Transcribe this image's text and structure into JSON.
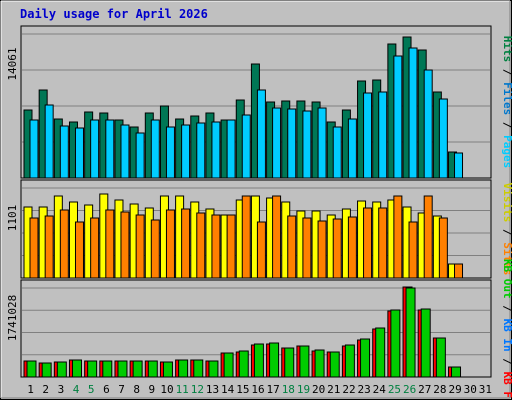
{
  "title": "Daily usage for April 2026",
  "colors": {
    "background": "#c0c0c0",
    "title": "#0000cc",
    "hits": "#007755",
    "files": "#00ccff",
    "pages": "#00ccff",
    "visits": "#ffff00",
    "sites": "#ff8000",
    "kb_f": "#ff0000",
    "kb_in": "#0077ff",
    "kb_out": "#00cc00",
    "weekend": "#008040",
    "axis_text": "#000000"
  },
  "right_labels": {
    "panel1": [
      {
        "text": "Hits",
        "color": "#008040"
      },
      {
        "text": " / ",
        "color": "#000000"
      },
      {
        "text": "Files",
        "color": "#0077cc"
      },
      {
        "text": " / ",
        "color": "#000000"
      },
      {
        "text": "Pages",
        "color": "#00ccff"
      }
    ],
    "panel2": [
      {
        "text": "Visits",
        "color": "#cccc00"
      },
      {
        "text": " / ",
        "color": "#000000"
      },
      {
        "text": "Sites",
        "color": "#ff8000"
      }
    ],
    "panel3": [
      {
        "text": "KB Out",
        "color": "#00cc00"
      },
      {
        "text": " / ",
        "color": "#000000"
      },
      {
        "text": "KB In",
        "color": "#0077ff"
      },
      {
        "text": " / ",
        "color": "#000000"
      },
      {
        "text": "KB F",
        "color": "#ff0000"
      }
    ]
  },
  "chart_data": [
    {
      "type": "bar",
      "name": "hits-files-pages",
      "max_label": "14061",
      "ylim": [
        0,
        14061
      ],
      "categories": [
        "1",
        "2",
        "3",
        "4",
        "5",
        "6",
        "7",
        "8",
        "9",
        "10",
        "11",
        "12",
        "13",
        "14",
        "15",
        "16",
        "17",
        "18",
        "19",
        "20",
        "21",
        "22",
        "23",
        "24",
        "25",
        "26",
        "27",
        "28",
        "29",
        "30",
        "31"
      ],
      "series": [
        {
          "name": "Hits",
          "values": [
            6600,
            8600,
            5800,
            5500,
            6400,
            6300,
            5700,
            5000,
            6300,
            7000,
            5800,
            6100,
            6300,
            5700,
            7600,
            11100,
            7400,
            7500,
            7500,
            7400,
            5500,
            6600,
            9500,
            9600,
            13100,
            13800,
            12500,
            8400,
            2500,
            0,
            0
          ]
        },
        {
          "name": "Files",
          "values": [
            5700,
            7100,
            5100,
            4900,
            5700,
            5700,
            5200,
            4400,
            5700,
            5000,
            5200,
            5400,
            5500,
            5700,
            6200,
            8600,
            6800,
            6700,
            6500,
            6800,
            5000,
            5800,
            8300,
            8400,
            11900,
            12700,
            10500,
            7700,
            2400,
            0,
            0
          ]
        },
        {
          "name": "Pages",
          "values": [
            0,
            0,
            0,
            0,
            0,
            0,
            0,
            0,
            0,
            0,
            0,
            0,
            0,
            0,
            0,
            0,
            0,
            0,
            0,
            0,
            0,
            0,
            0,
            0,
            0,
            0,
            0,
            0,
            0,
            0,
            0
          ]
        }
      ]
    },
    {
      "type": "bar",
      "name": "visits-sites",
      "max_label": "1101",
      "ylim": [
        0,
        1101
      ],
      "categories": [
        "1",
        "2",
        "3",
        "4",
        "5",
        "6",
        "7",
        "8",
        "9",
        "10",
        "11",
        "12",
        "13",
        "14",
        "15",
        "16",
        "17",
        "18",
        "19",
        "20",
        "21",
        "22",
        "23",
        "24",
        "25",
        "26",
        "27",
        "28",
        "29",
        "30",
        "31"
      ],
      "series": [
        {
          "name": "Visits",
          "values": [
            870,
            870,
            1000,
            930,
            890,
            1030,
            950,
            900,
            860,
            1000,
            1000,
            930,
            850,
            770,
            960,
            1000,
            980,
            930,
            820,
            820,
            770,
            850,
            940,
            930,
            950,
            870,
            790,
            760,
            170,
            0,
            0
          ]
        },
        {
          "name": "Sites",
          "values": [
            740,
            760,
            830,
            680,
            730,
            830,
            810,
            770,
            710,
            830,
            840,
            800,
            770,
            770,
            1000,
            680,
            1000,
            760,
            740,
            700,
            720,
            750,
            860,
            860,
            1000,
            680,
            1000,
            740,
            170,
            0,
            0
          ]
        }
      ]
    },
    {
      "type": "bar",
      "name": "kb-f-in-out",
      "max_label": "1741028",
      "ylim": [
        0,
        1741028
      ],
      "categories": [
        "1",
        "2",
        "3",
        "4",
        "5",
        "6",
        "7",
        "8",
        "9",
        "10",
        "11",
        "12",
        "13",
        "14",
        "15",
        "16",
        "17",
        "18",
        "19",
        "20",
        "21",
        "22",
        "23",
        "24",
        "25",
        "26",
        "27",
        "28",
        "29",
        "30",
        "31"
      ],
      "series": [
        {
          "name": "KB F",
          "values": [
            320000,
            270000,
            300000,
            330000,
            320000,
            310000,
            310000,
            320000,
            310000,
            300000,
            340000,
            340000,
            310000,
            460000,
            490000,
            630000,
            640000,
            560000,
            600000,
            510000,
            480000,
            610000,
            720000,
            940000,
            1300000,
            1760000,
            1310000,
            760000,
            190000,
            0,
            0
          ]
        },
        {
          "name": "KB In",
          "values": [
            0,
            0,
            0,
            0,
            0,
            0,
            0,
            0,
            0,
            0,
            0,
            0,
            0,
            0,
            0,
            0,
            0,
            0,
            0,
            0,
            0,
            0,
            0,
            0,
            0,
            0,
            0,
            0,
            0,
            0,
            0
          ]
        },
        {
          "name": "KB Out",
          "values": [
            320000,
            270000,
            300000,
            330000,
            320000,
            310000,
            320000,
            320000,
            310000,
            300000,
            340000,
            340000,
            310000,
            470000,
            510000,
            650000,
            660000,
            570000,
            610000,
            520000,
            490000,
            620000,
            740000,
            960000,
            1320000,
            1740000,
            1330000,
            770000,
            190000,
            0,
            0
          ]
        }
      ]
    }
  ],
  "x_axis": {
    "days": [
      "1",
      "2",
      "3",
      "4",
      "5",
      "6",
      "7",
      "8",
      "9",
      "10",
      "11",
      "12",
      "13",
      "14",
      "15",
      "16",
      "17",
      "18",
      "19",
      "20",
      "21",
      "22",
      "23",
      "24",
      "25",
      "26",
      "27",
      "28",
      "29",
      "30",
      "31"
    ],
    "weekend_days": [
      "4",
      "5",
      "11",
      "12",
      "18",
      "19",
      "25",
      "26"
    ]
  }
}
